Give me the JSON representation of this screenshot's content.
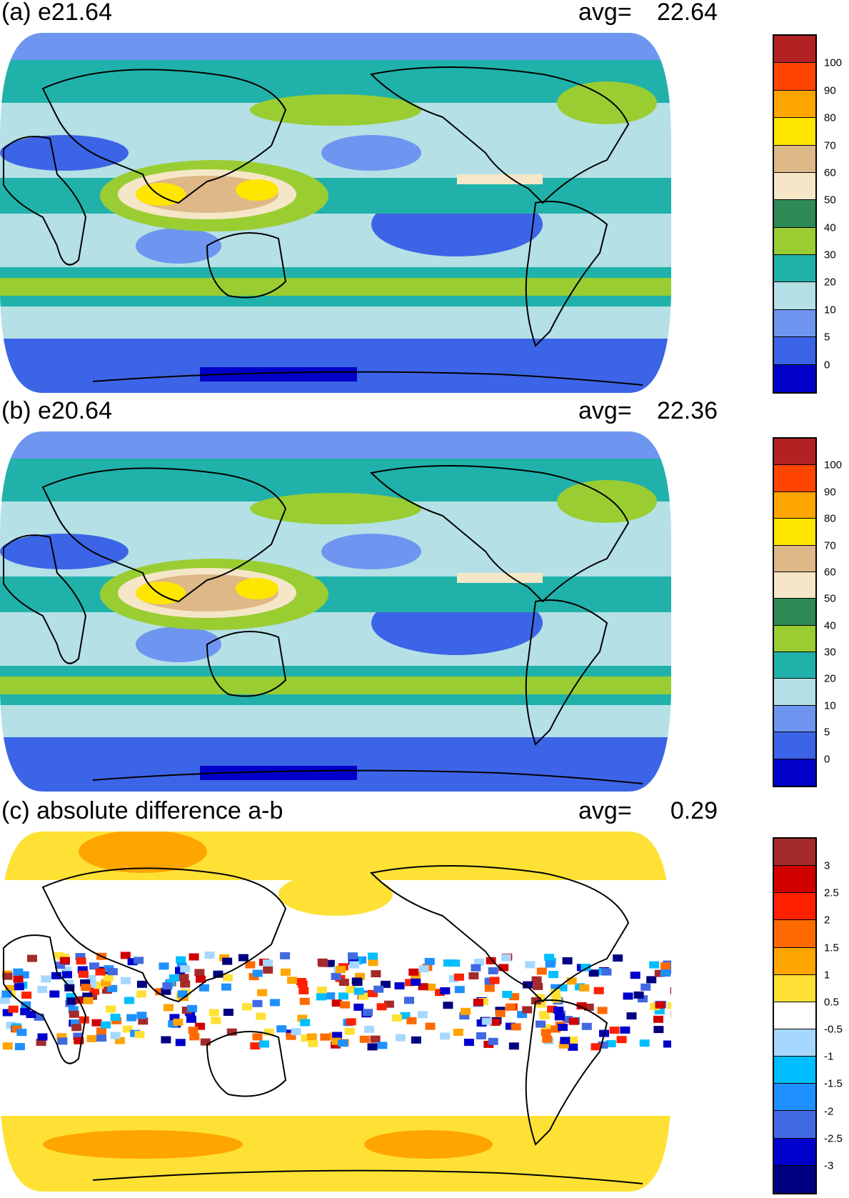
{
  "panels": [
    {
      "title": "(a) e21.64",
      "avg_label": "avg=",
      "avg_value": "22.64",
      "colorbar": {
        "colors": [
          "#0000c8",
          "#3c64e6",
          "#6e96f0",
          "#b4e0e6",
          "#20b2aa",
          "#9acd32",
          "#2e8b57",
          "#f5e6c8",
          "#deb887",
          "#ffe600",
          "#ffa500",
          "#ff4500",
          "#b22222"
        ],
        "labels": [
          "100",
          "90",
          "80",
          "70",
          "60",
          "50",
          "40",
          "30",
          "20",
          "10",
          "5",
          "0"
        ]
      }
    },
    {
      "title": "(b) e20.64",
      "avg_label": "avg=",
      "avg_value": "22.36",
      "colorbar": {
        "colors": [
          "#0000c8",
          "#3c64e6",
          "#6e96f0",
          "#b4e0e6",
          "#20b2aa",
          "#9acd32",
          "#2e8b57",
          "#f5e6c8",
          "#deb887",
          "#ffe600",
          "#ffa500",
          "#ff4500",
          "#b22222"
        ],
        "labels": [
          "100",
          "90",
          "80",
          "70",
          "60",
          "50",
          "40",
          "30",
          "20",
          "10",
          "5",
          "0"
        ]
      }
    },
    {
      "title": "(c) absolute difference a-b",
      "avg_label": "avg=",
      "avg_value": "0.29",
      "colorbar": {
        "colors": [
          "#000080",
          "#0000cd",
          "#4169e1",
          "#1e90ff",
          "#00bfff",
          "#a6d8ff",
          "#ffffff",
          "#ffe135",
          "#ffa500",
          "#ff6a00",
          "#ff2000",
          "#d00000",
          "#a52a2a"
        ],
        "labels": [
          "3",
          "2.5",
          "2",
          "1.5",
          "1",
          "0.5",
          "-0.5",
          "-1",
          "-1.5",
          "-2",
          "-2.5",
          "-3"
        ]
      }
    }
  ]
}
